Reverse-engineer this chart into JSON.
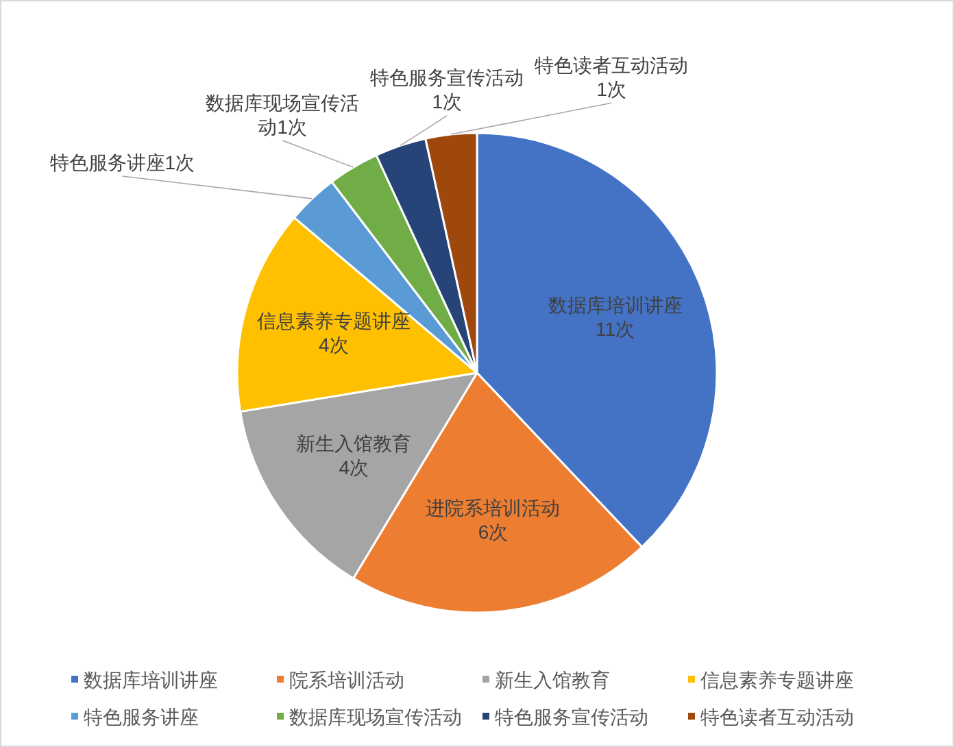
{
  "chart_data": {
    "type": "pie",
    "categories": [
      "数据库培训讲座",
      "院系培训活动",
      "新生入馆教育",
      "信息素养专题讲座",
      "特色服务讲座",
      "数据库现场宣传活动",
      "特色服务宣传活动",
      "特色读者互动活动"
    ],
    "values": [
      11,
      6,
      4,
      4,
      1,
      1,
      1,
      1
    ],
    "colors": [
      "#4472c4",
      "#ed7d31",
      "#a5a5a5",
      "#ffc000",
      "#5b9bd5",
      "#70ad47",
      "#264478",
      "#9e480e"
    ],
    "value_labels": [
      "数据库培训讲座\n11次",
      "进院系培训活动\n6次",
      "新生入馆教育\n4次",
      "信息素养专题讲座\n4次",
      "特色服务讲座1次",
      "数据库现场宣传活动1次",
      "特色服务宣传活动\n1次",
      "特色读者互动活动\n1次"
    ],
    "legend": "bottom"
  }
}
